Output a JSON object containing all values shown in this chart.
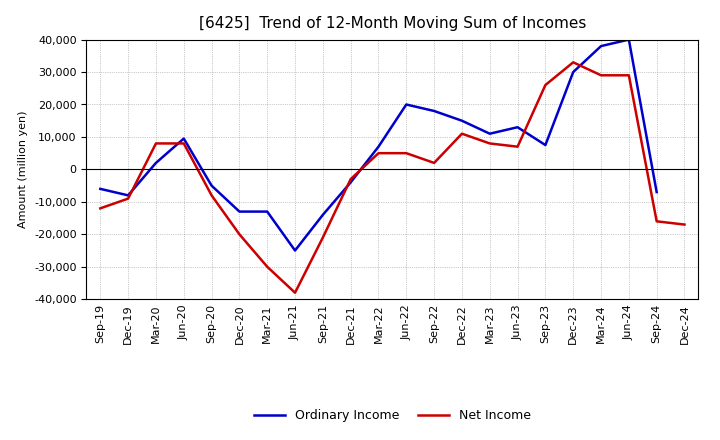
{
  "title": "[6425]  Trend of 12-Month Moving Sum of Incomes",
  "ylabel": "Amount (million yen)",
  "x_labels": [
    "Sep-19",
    "Dec-19",
    "Mar-20",
    "Jun-20",
    "Sep-20",
    "Dec-20",
    "Mar-21",
    "Jun-21",
    "Sep-21",
    "Dec-21",
    "Mar-22",
    "Jun-22",
    "Sep-22",
    "Dec-22",
    "Mar-23",
    "Jun-23",
    "Sep-23",
    "Dec-23",
    "Mar-24",
    "Jun-24",
    "Sep-24",
    "Dec-24"
  ],
  "ordinary_income": [
    -6000,
    -8000,
    2000,
    9500,
    -5000,
    -13000,
    -13000,
    -25000,
    -14000,
    -4000,
    7000,
    20000,
    18000,
    15000,
    11000,
    13000,
    7500,
    30000,
    38000,
    40000,
    -7000,
    null
  ],
  "net_income": [
    -12000,
    -9000,
    8000,
    8000,
    -8000,
    -20000,
    -30000,
    -38000,
    -21000,
    -3000,
    5000,
    5000,
    2000,
    11000,
    8000,
    7000,
    26000,
    33000,
    29000,
    29000,
    -16000,
    -17000
  ],
  "ordinary_income_color": "#0000cc",
  "net_income_color": "#cc0000",
  "ylim": [
    -40000,
    40000
  ],
  "yticks": [
    -40000,
    -30000,
    -20000,
    -10000,
    0,
    10000,
    20000,
    30000,
    40000
  ],
  "background_color": "#ffffff",
  "plot_bg_color": "#ffffff",
  "grid_color": "#999999",
  "title_fontsize": 11,
  "axis_fontsize": 8,
  "legend_fontsize": 9,
  "line_width": 1.8
}
